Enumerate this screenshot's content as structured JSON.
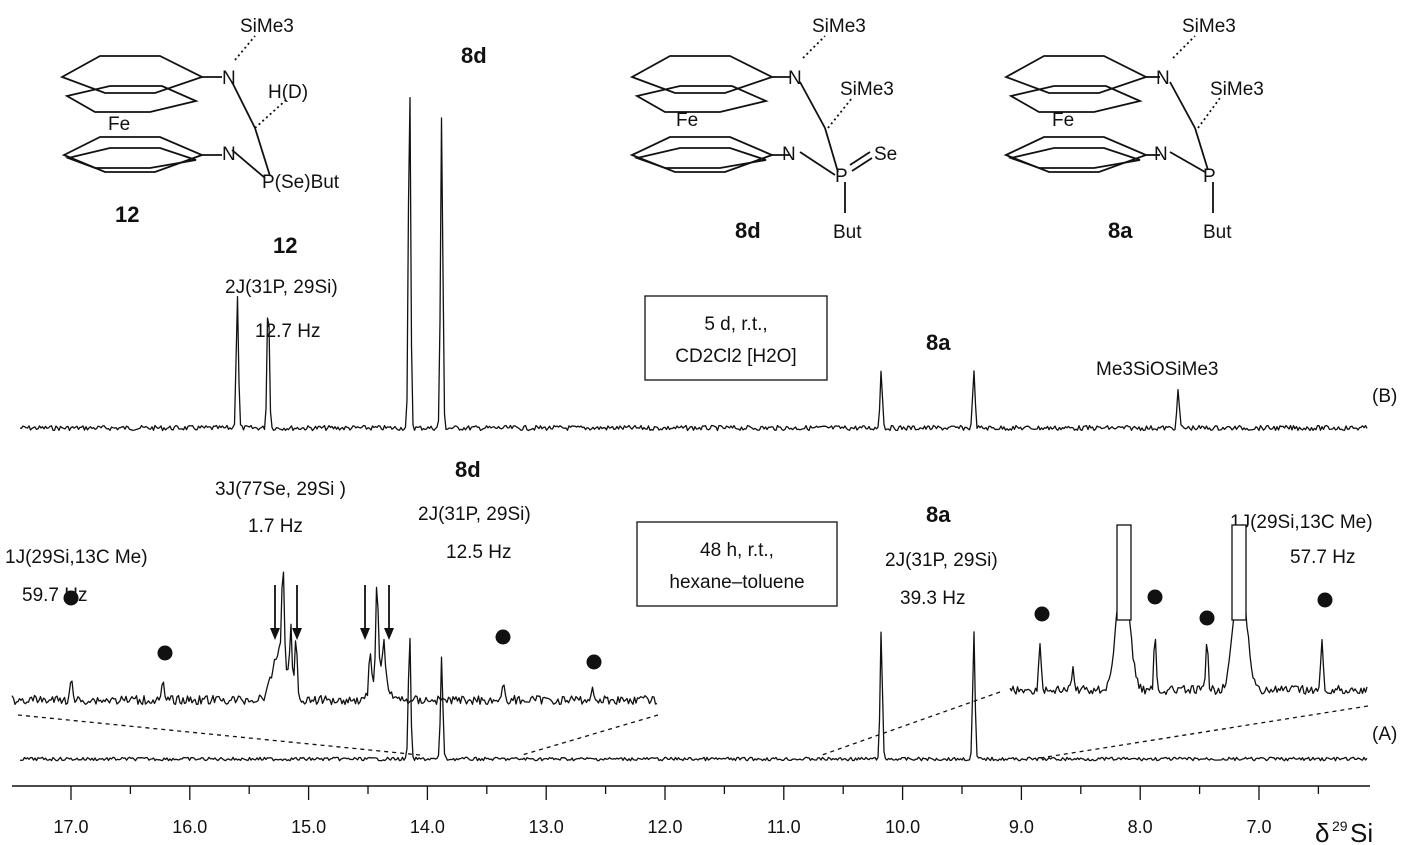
{
  "chart_data": {
    "type": "line",
    "xlabel": "δ 29Si",
    "x_axis": {
      "ticks": [
        "17.0",
        "16.0",
        "15.0",
        "14.0",
        "13.0",
        "12.0",
        "11.0",
        "10.0",
        "9.0",
        "8.0",
        "7.0"
      ],
      "range": [
        17.9,
        6.0
      ],
      "reversed": true
    },
    "series": [
      {
        "name": "(B)",
        "condition": [
          "5 d, r.t.,",
          "CD2Cl2 [H2O]"
        ],
        "peaks": [
          {
            "x": 15.6,
            "height": 0.38
          },
          {
            "x": 15.34,
            "height": 0.38
          },
          {
            "x": 14.15,
            "height": 1.0
          },
          {
            "x": 13.88,
            "height": 0.89
          },
          {
            "x": 10.18,
            "height": 0.17
          },
          {
            "x": 9.4,
            "height": 0.17
          },
          {
            "x": 7.68,
            "height": 0.11
          }
        ]
      },
      {
        "name": "(A)",
        "condition": [
          "48 h, r.t.,",
          "hexane–toluene"
        ],
        "peaks": [
          {
            "x": 14.15,
            "height": 0.85
          },
          {
            "x": 13.88,
            "height": 0.69
          },
          {
            "x": 10.18,
            "height": 0.85
          },
          {
            "x": 9.4,
            "height": 0.85
          }
        ],
        "insets": [
          {
            "range": [
              17.9,
              12.3
            ],
            "peaks": [
              15.72,
              15.66,
              15.58,
              14.92,
              14.85,
              14.78,
              17.55,
              16.75,
              13.7,
              12.92
            ]
          },
          {
            "range": [
              9.3,
              6.0
            ],
            "peaks": [
              8.92,
              8.64,
              8.17,
              7.9,
              7.44,
              7.14,
              6.42
            ]
          }
        ]
      }
    ],
    "annotations": {
      "b_12": "12",
      "b_12_j": "2J(31P, 29Si)",
      "b_12_hz": "12.7 Hz",
      "b_8d": "8d",
      "b_8a": "8a",
      "b_siloxane": "Me3SiOSiMe3",
      "a_1j_left": "1J(29Si,13C Me)",
      "a_1j_left_hz": "59.7 Hz",
      "a_3j": "3J(77Se, 29Si )",
      "a_3j_hz": "1.7 Hz",
      "a_8d": "8d",
      "a_8d_j": "2J(31P, 29Si)",
      "a_8d_hz": "12.5 Hz",
      "a_8a": "8a",
      "a_8a_j": "2J(31P, 29Si)",
      "a_8a_hz": "39.3 Hz",
      "a_1j_right": "1J(29Si,13C Me)",
      "a_1j_right_hz": "57.7 Hz"
    }
  },
  "structures": [
    {
      "id": "12",
      "labels": {
        "top": "SiMe3",
        "hd": "H(D)",
        "fe": "Fe",
        "n1": "N",
        "n2": "N",
        "p": "P(Se)But"
      }
    },
    {
      "id": "8d",
      "labels": {
        "top": "SiMe3",
        "mid": "SiMe3",
        "fe": "Fe",
        "n1": "N",
        "n2": "N",
        "p": "P",
        "se": "Se",
        "bu": "But"
      }
    },
    {
      "id": "8a",
      "labels": {
        "top": "SiMe3",
        "mid": "SiMe3",
        "fe": "Fe",
        "n1": "N",
        "n2": "N",
        "p": "P",
        "bu": "But"
      }
    }
  ],
  "trace_labels": {
    "b": "(B)",
    "a": "(A)"
  }
}
